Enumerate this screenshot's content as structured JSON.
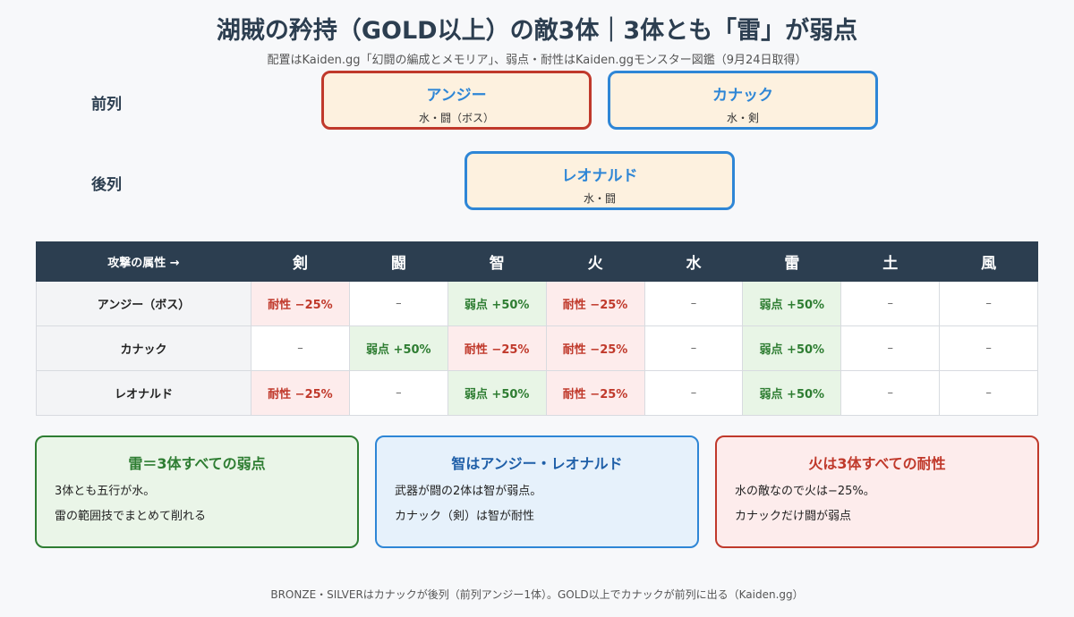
{
  "title": "湖賊の矜持（GOLD以上）の敵3体｜3体とも「雷」が弱点",
  "subtitle": "配置はKaiden.gg「幻闘の編成とメモリア」、弱点・耐性はKaiden.ggモンスター図鑑（9月24日取得）",
  "formation": {
    "front_label": "前列",
    "back_label": "後列",
    "front": [
      {
        "name": "アンジー",
        "attr": "水・闘（ボス）"
      },
      {
        "name": "カナック",
        "attr": "水・剣"
      }
    ],
    "back": [
      {
        "name": "レオナルド",
        "attr": "水・闘"
      }
    ]
  },
  "table": {
    "corner": "攻撃の属性 →",
    "columns": [
      "剣",
      "闘",
      "智",
      "火",
      "水",
      "雷",
      "土",
      "風"
    ],
    "rows": [
      {
        "name": "アンジー（ボス）",
        "cells": [
          "耐性 −25%",
          "–",
          "弱点 +50%",
          "耐性 −25%",
          "–",
          "弱点 +50%",
          "–",
          "–"
        ]
      },
      {
        "name": "カナック",
        "cells": [
          "–",
          "弱点 +50%",
          "耐性 −25%",
          "耐性 −25%",
          "–",
          "弱点 +50%",
          "–",
          "–"
        ]
      },
      {
        "name": "レオナルド",
        "cells": [
          "耐性 −25%",
          "–",
          "弱点 +50%",
          "耐性 −25%",
          "–",
          "弱点 +50%",
          "–",
          "–"
        ]
      }
    ],
    "colors": {
      "weak_bg": "#e8f5e6",
      "weak_text": "#2e7d32",
      "resist_bg": "#fdecec",
      "resist_text": "#c0392b",
      "header_bg": "#2c3e50"
    }
  },
  "notes": [
    {
      "head": "雷＝3体すべての弱点",
      "lines": [
        "3体とも五行が水。",
        "雷の範囲技でまとめて削れる"
      ]
    },
    {
      "head": "智はアンジー・レオナルド",
      "lines": [
        "武器が闘の2体は智が弱点。",
        "カナック（剣）は智が耐性"
      ]
    },
    {
      "head": "火は3体すべての耐性",
      "lines": [
        "水の敵なので火は−25%。",
        "カナックだけ闘が弱点"
      ]
    }
  ],
  "footer": "BRONZE・SILVERはカナックが後列（前列アンジー1体）。GOLD以上でカナックが前列に出る（Kaiden.gg）"
}
